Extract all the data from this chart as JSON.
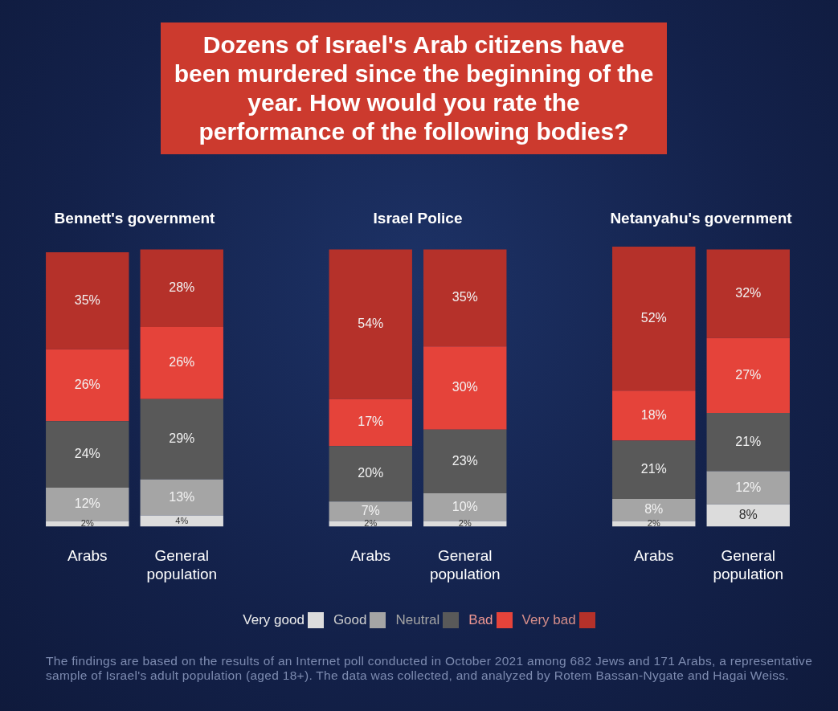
{
  "chart_data": {
    "type": "bar",
    "stacked": true,
    "title": "Dozens of Israel's Arab citizens have been murdered since the beginning of the year. How would you rate the performance of the following bodies?",
    "categories": [
      "Arabs",
      "General population",
      null,
      "Arabs",
      "General population",
      null,
      "Arabs",
      "General population"
    ],
    "series": [
      {
        "name": "Very good",
        "color": "#dcdcdc",
        "values": [
          2,
          4,
          null,
          2,
          2,
          null,
          2,
          8
        ],
        "value_labels": [
          "2%",
          "4%",
          null,
          "2%",
          "2%",
          null,
          "2%",
          "8%"
        ]
      },
      {
        "name": "Good",
        "color": "#a5a5a5",
        "values": [
          12,
          13,
          null,
          7,
          10,
          null,
          8,
          12
        ],
        "value_labels": [
          "12%",
          "13%",
          null,
          "7%",
          "10%",
          null,
          "8%",
          "12%"
        ]
      },
      {
        "name": "Neutral",
        "color": "#595959",
        "values": [
          24,
          29,
          null,
          20,
          23,
          null,
          21,
          21
        ],
        "value_labels": [
          "24%",
          "29%",
          null,
          "20%",
          "23%",
          null,
          "21%",
          "21%"
        ]
      },
      {
        "name": "Bad",
        "color": "#e5433a",
        "values": [
          26,
          26,
          null,
          17,
          30,
          null,
          18,
          27
        ],
        "value_labels": [
          "26%",
          "26%",
          null,
          "17%",
          "30%",
          null,
          "18%",
          "27%"
        ]
      },
      {
        "name": "Very bad",
        "color": "#b5312a",
        "values": [
          35,
          28,
          null,
          54,
          35,
          null,
          52,
          32
        ],
        "value_labels": [
          "35%",
          "28%",
          null,
          "54%",
          "35%",
          null,
          "52%",
          "32%"
        ]
      }
    ],
    "legend": "bottom",
    "annotations": [
      "Bennett's government",
      "Israel Police",
      "Netanyahu's government",
      "The findings are based on the results of an Internet poll conducted in October 2021 among 682 Jews and 171 Arabs, a representative sample of Israel's adult population (aged 18+). The data was collected, and analyzed by Rotem Bassan-Nygate and Hagai Weiss."
    ]
  }
}
